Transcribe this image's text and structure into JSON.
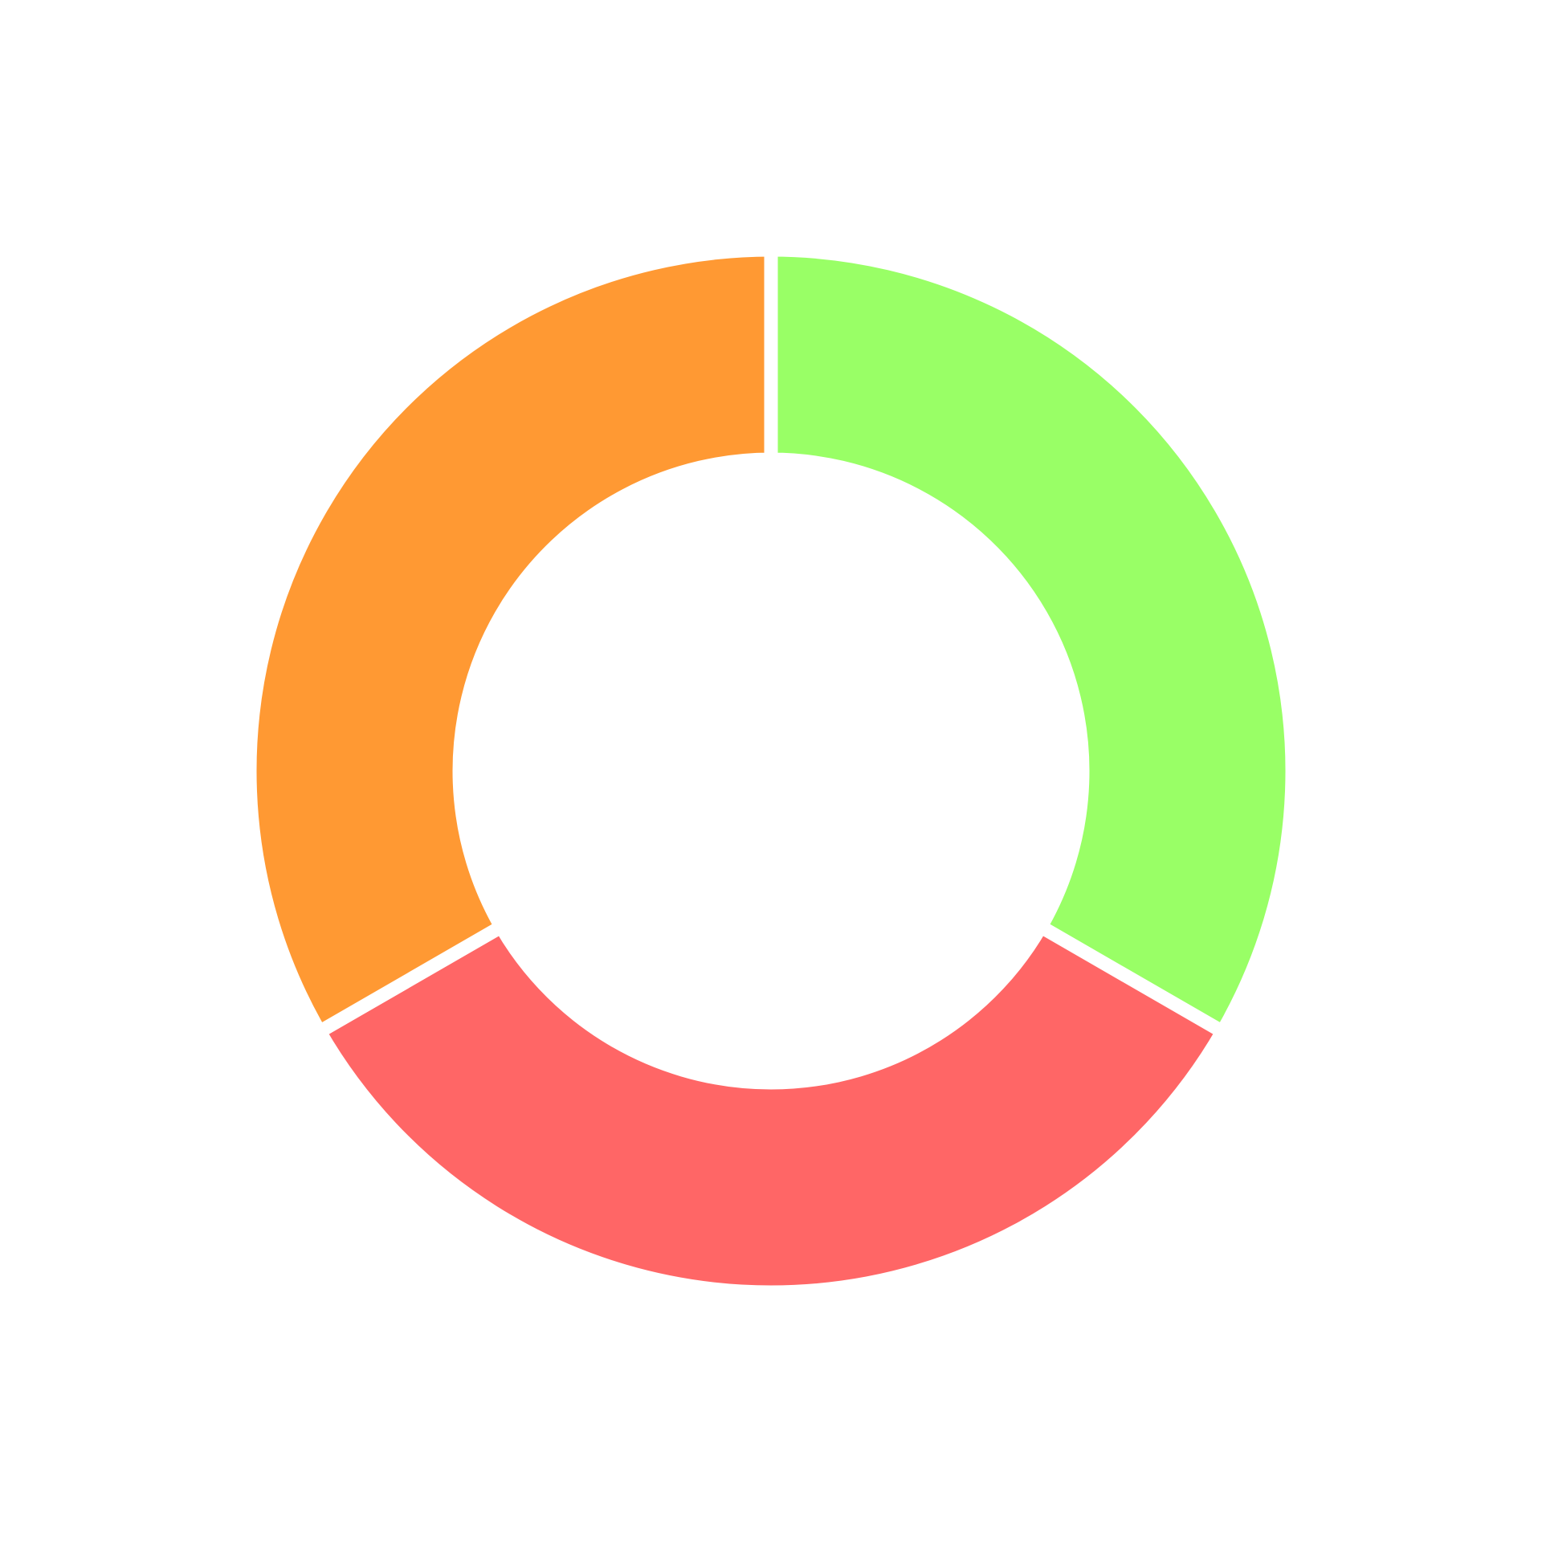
{
  "chart_data": {
    "type": "donut",
    "values": [
      33.3,
      33.3,
      33.3
    ],
    "colors": [
      "#99ff66",
      "#ff6666",
      "#ff9933"
    ]
  }
}
